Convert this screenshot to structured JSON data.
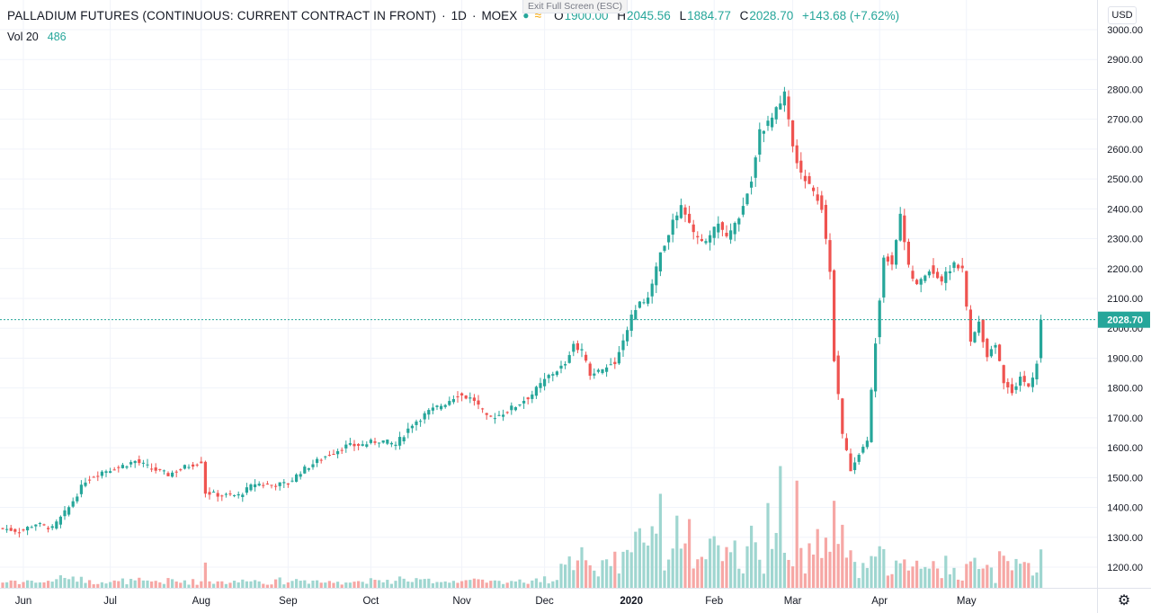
{
  "header": {
    "symbol": "PALLADIUM FUTURES (CONTINUOUS: CURRENT CONTRACT IN FRONT)",
    "interval": "1D",
    "exchange": "MOEX",
    "sep": "·",
    "o_label": "O",
    "o_value": "1900.00",
    "h_label": "H",
    "h_value": "2045.56",
    "l_label": "L",
    "l_value": "1884.77",
    "c_label": "C",
    "c_value": "2028.70",
    "change": "+143.68 (+7.62%)",
    "tooltip": "Exit Full Screen (ESC)"
  },
  "volume": {
    "label": "Vol 20",
    "value": "486"
  },
  "currency": "USD",
  "colors": {
    "up": "#26a69a",
    "down": "#ef5350",
    "up_vol": "#9fd6d0",
    "down_vol": "#f6a7a5",
    "grid": "#f0f3fa",
    "axis": "#131722",
    "last_price": "#26a69a"
  },
  "icons": {
    "settings": "gear-icon"
  },
  "chart_data": {
    "type": "candlestick",
    "title": "PALLADIUM FUTURES (CONTINUOUS: CURRENT CONTRACT IN FRONT)",
    "ylim": [
      1120,
      3030
    ],
    "y_ticks": [
      "1200.00",
      "1300.00",
      "1400.00",
      "1500.00",
      "1600.00",
      "1700.00",
      "1800.00",
      "1900.00",
      "2000.00",
      "2100.00",
      "2200.00",
      "2300.00",
      "2400.00",
      "2500.00",
      "2600.00",
      "2700.00",
      "2800.00",
      "2900.00",
      "3000.00"
    ],
    "x_ticks": [
      {
        "label": "Jun",
        "idx": 5
      },
      {
        "label": "Jul",
        "idx": 26
      },
      {
        "label": "Aug",
        "idx": 48
      },
      {
        "label": "Sep",
        "idx": 69
      },
      {
        "label": "Oct",
        "idx": 89
      },
      {
        "label": "Nov",
        "idx": 111
      },
      {
        "label": "Dec",
        "idx": 131
      },
      {
        "label": "2020",
        "idx": 152
      },
      {
        "label": "Feb",
        "idx": 172
      },
      {
        "label": "Mar",
        "idx": 191
      },
      {
        "label": "Apr",
        "idx": 212
      },
      {
        "label": "May",
        "idx": 233
      }
    ],
    "grid": true,
    "last_price": "2028.70",
    "anchors": [
      [
        0,
        1330
      ],
      [
        4,
        1320
      ],
      [
        8,
        1345
      ],
      [
        12,
        1330
      ],
      [
        16,
        1400
      ],
      [
        20,
        1490
      ],
      [
        24,
        1520
      ],
      [
        28,
        1535
      ],
      [
        32,
        1555
      ],
      [
        36,
        1530
      ],
      [
        40,
        1510
      ],
      [
        44,
        1535
      ],
      [
        48,
        1555
      ],
      [
        49,
        1450
      ],
      [
        53,
        1440
      ],
      [
        57,
        1440
      ],
      [
        61,
        1480
      ],
      [
        65,
        1475
      ],
      [
        69,
        1480
      ],
      [
        72,
        1520
      ],
      [
        76,
        1555
      ],
      [
        79,
        1580
      ],
      [
        83,
        1605
      ],
      [
        87,
        1610
      ],
      [
        91,
        1625
      ],
      [
        95,
        1610
      ],
      [
        99,
        1680
      ],
      [
        103,
        1720
      ],
      [
        107,
        1750
      ],
      [
        110,
        1780
      ],
      [
        114,
        1760
      ],
      [
        117,
        1700
      ],
      [
        120,
        1710
      ],
      [
        124,
        1740
      ],
      [
        128,
        1780
      ],
      [
        132,
        1840
      ],
      [
        136,
        1880
      ],
      [
        138,
        1950
      ],
      [
        140,
        1920
      ],
      [
        142,
        1850
      ],
      [
        145,
        1860
      ],
      [
        148,
        1890
      ],
      [
        151,
        2000
      ],
      [
        153,
        2070
      ],
      [
        156,
        2100
      ],
      [
        159,
        2250
      ],
      [
        162,
        2350
      ],
      [
        164,
        2400
      ],
      [
        167,
        2320
      ],
      [
        170,
        2280
      ],
      [
        173,
        2350
      ],
      [
        175,
        2300
      ],
      [
        178,
        2380
      ],
      [
        181,
        2500
      ],
      [
        183,
        2660
      ],
      [
        186,
        2700
      ],
      [
        189,
        2780
      ],
      [
        191,
        2600
      ],
      [
        193,
        2520
      ],
      [
        195,
        2480
      ],
      [
        198,
        2410
      ],
      [
        200,
        2200
      ],
      [
        201,
        1900
      ],
      [
        203,
        1640
      ],
      [
        205,
        1530
      ],
      [
        207,
        1580
      ],
      [
        209,
        1620
      ],
      [
        211,
        1960
      ],
      [
        213,
        2250
      ],
      [
        215,
        2220
      ],
      [
        217,
        2380
      ],
      [
        219,
        2200
      ],
      [
        221,
        2140
      ],
      [
        224,
        2200
      ],
      [
        227,
        2160
      ],
      [
        230,
        2220
      ],
      [
        232,
        2190
      ],
      [
        234,
        1950
      ],
      [
        236,
        2020
      ],
      [
        238,
        1910
      ],
      [
        240,
        1950
      ],
      [
        242,
        1820
      ],
      [
        244,
        1790
      ],
      [
        246,
        1840
      ],
      [
        248,
        1800
      ],
      [
        250,
        1875
      ],
      [
        251,
        2028.7
      ]
    ],
    "volume_peaks": [
      {
        "idx": 159,
        "v": 95
      },
      {
        "idx": 163,
        "v": 80
      },
      {
        "idx": 166,
        "v": 75
      },
      {
        "idx": 188,
        "v": 130
      },
      {
        "idx": 192,
        "v": 110
      },
      {
        "idx": 185,
        "v": 85
      },
      {
        "idx": 197,
        "v": 65
      },
      {
        "idx": 213,
        "v": 40
      },
      {
        "idx": 218,
        "v": 30
      },
      {
        "idx": 140,
        "v": 45
      },
      {
        "idx": 148,
        "v": 35
      },
      {
        "idx": 172,
        "v": 55
      }
    ]
  }
}
